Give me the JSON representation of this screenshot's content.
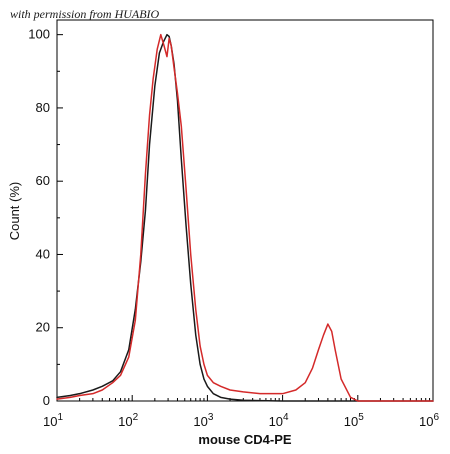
{
  "watermark": "with permission from HUABIO",
  "colors": {
    "black_series": "#1a1a1a",
    "red_series": "#d42a2a",
    "axis": "#000000"
  },
  "chart_data": {
    "type": "line",
    "xlabel": "mouse CD4-PE",
    "ylabel": "Count (%)",
    "xscale": "log",
    "xlim": [
      10,
      1000000
    ],
    "ylim": [
      0,
      100
    ],
    "grid": false,
    "x_ticks": [
      {
        "base": "10",
        "exp": "1"
      },
      {
        "base": "10",
        "exp": "2"
      },
      {
        "base": "10",
        "exp": "3"
      },
      {
        "base": "10",
        "exp": "4"
      },
      {
        "base": "10",
        "exp": "5"
      },
      {
        "base": "10",
        "exp": "6"
      }
    ],
    "y_ticks": [
      "0",
      "20",
      "40",
      "60",
      "80",
      "100"
    ],
    "series": [
      {
        "color": "#1a1a1a",
        "x": [
          10,
          15,
          20,
          30,
          40,
          55,
          70,
          90,
          110,
          130,
          150,
          170,
          200,
          230,
          260,
          290,
          310,
          330,
          360,
          400,
          450,
          520,
          600,
          700,
          800,
          900,
          1000,
          1200,
          1500,
          2000,
          3000,
          5000,
          10000,
          100000,
          1000000
        ],
        "y": [
          1,
          1.5,
          2,
          3,
          4,
          5.5,
          8,
          14,
          25,
          38,
          52,
          70,
          86,
          95,
          98,
          100,
          99.5,
          97,
          92,
          82,
          66,
          48,
          32,
          18,
          10,
          6,
          4,
          2,
          1,
          0.5,
          0.2,
          0.1,
          0,
          0,
          0
        ]
      },
      {
        "color": "#d42a2a",
        "x": [
          10,
          15,
          20,
          30,
          40,
          55,
          70,
          90,
          110,
          130,
          150,
          170,
          190,
          215,
          240,
          265,
          290,
          310,
          330,
          360,
          400,
          450,
          520,
          600,
          700,
          800,
          900,
          1000,
          1200,
          1500,
          2000,
          3000,
          5000,
          10000,
          15000,
          20000,
          25000,
          30000,
          35000,
          40000,
          45000,
          50000,
          60000,
          80000,
          100000,
          1000000
        ],
        "y": [
          0.5,
          1,
          1.5,
          2,
          3,
          5,
          7,
          12,
          22,
          40,
          62,
          78,
          88,
          96,
          100,
          97,
          94,
          99,
          97,
          91,
          84,
          75,
          58,
          40,
          25,
          15,
          10,
          7,
          5,
          4,
          3,
          2.5,
          2,
          2,
          3,
          5,
          9,
          14,
          18,
          21,
          19,
          14,
          6,
          1,
          0,
          0
        ]
      }
    ]
  }
}
